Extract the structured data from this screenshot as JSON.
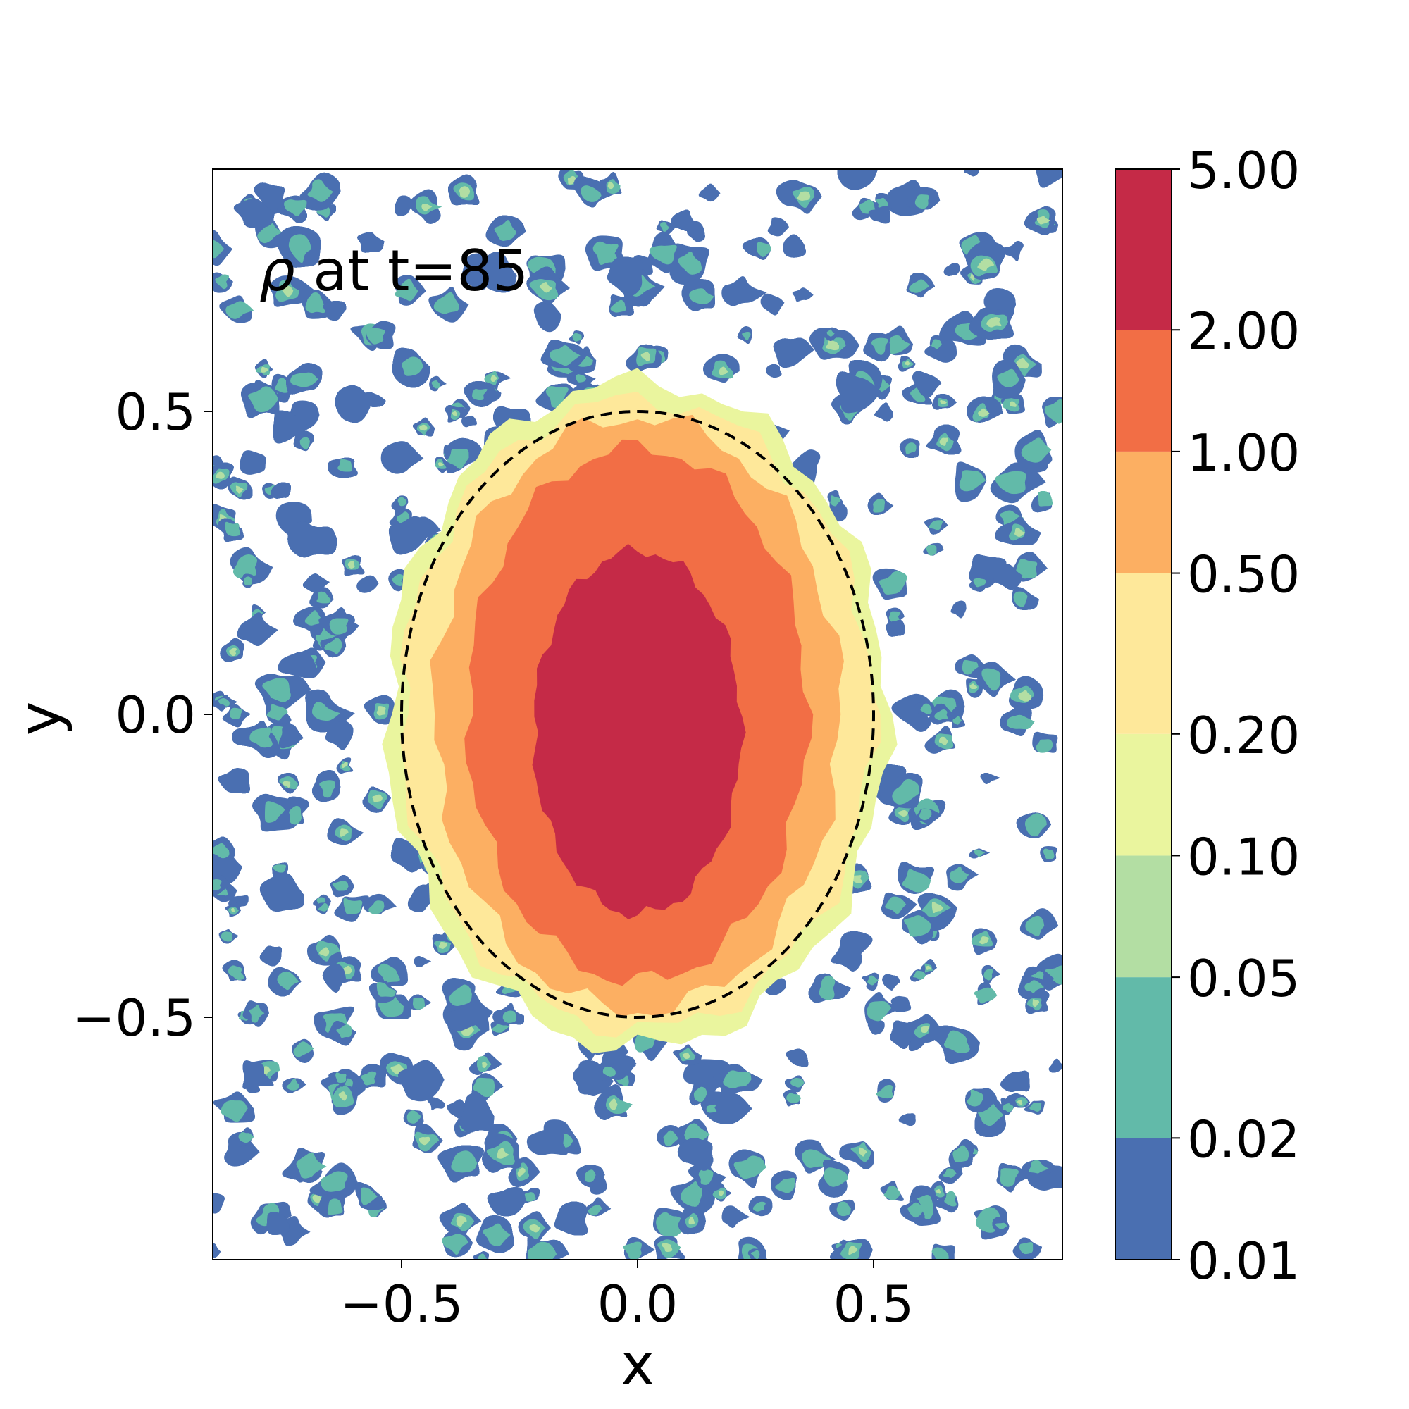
{
  "chart_data": {
    "type": "heatmap",
    "annotation": {
      "symbol": "ρ",
      "text": " at t=85"
    },
    "xlabel": "x",
    "ylabel": "y",
    "xlim": [
      -0.9,
      0.9
    ],
    "ylim": [
      -0.9,
      0.9
    ],
    "xticks": [
      {
        "value": -0.5,
        "label": "−0.5"
      },
      {
        "value": 0.0,
        "label": "0.0"
      },
      {
        "value": 0.5,
        "label": "0.5"
      }
    ],
    "yticks": [
      {
        "value": 0.5,
        "label": "0.5"
      },
      {
        "value": 0.0,
        "label": "0.0"
      },
      {
        "value": -0.5,
        "label": "−0.5"
      }
    ],
    "colorbar": {
      "scale": "log",
      "levels": [
        0.01,
        0.02,
        0.05,
        0.1,
        0.2,
        0.5,
        1.0,
        2.0,
        5.0
      ],
      "tick_labels": [
        "0.01",
        "0.02",
        "0.05",
        "0.10",
        "0.20",
        "0.50",
        "1.00",
        "2.00",
        "5.00"
      ],
      "colors": [
        "#4a6fb1",
        "#62baa9",
        "#b3dea3",
        "#eaf59e",
        "#fee89a",
        "#fcaf62",
        "#f26e45",
        "#c52a47"
      ]
    },
    "density_bands": [
      {
        "level": 2.0,
        "half_width_x": 0.22,
        "half_height_y": 0.3,
        "center_y": -0.03
      },
      {
        "level": 1.0,
        "half_width_x": 0.36,
        "half_height_y": 0.44,
        "center_y": 0.0
      },
      {
        "level": 0.5,
        "half_width_x": 0.43,
        "half_height_y": 0.49,
        "center_y": 0.0
      },
      {
        "level": 0.2,
        "half_width_x": 0.5,
        "half_height_y": 0.52,
        "center_y": 0.0
      },
      {
        "level": 0.1,
        "half_width_x": 0.53,
        "half_height_y": 0.55,
        "center_y": 0.0
      }
    ],
    "reference_ellipse": {
      "style": "dashed",
      "color": "#000000",
      "center": [
        0.0,
        0.0
      ],
      "semi_axis_x": 0.5,
      "semi_axis_y": 0.5
    },
    "grid": false
  }
}
